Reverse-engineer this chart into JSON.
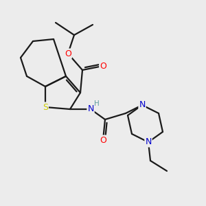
{
  "bg_color": "#ececec",
  "bond_color": "#1a1a1a",
  "S_color": "#cccc00",
  "N_color": "#0000cc",
  "O_color": "#ff0000",
  "H_color": "#5f9ea0",
  "font_size": 8.5,
  "line_width": 1.6,
  "xlim": [
    0,
    10
  ],
  "ylim": [
    0,
    10
  ]
}
